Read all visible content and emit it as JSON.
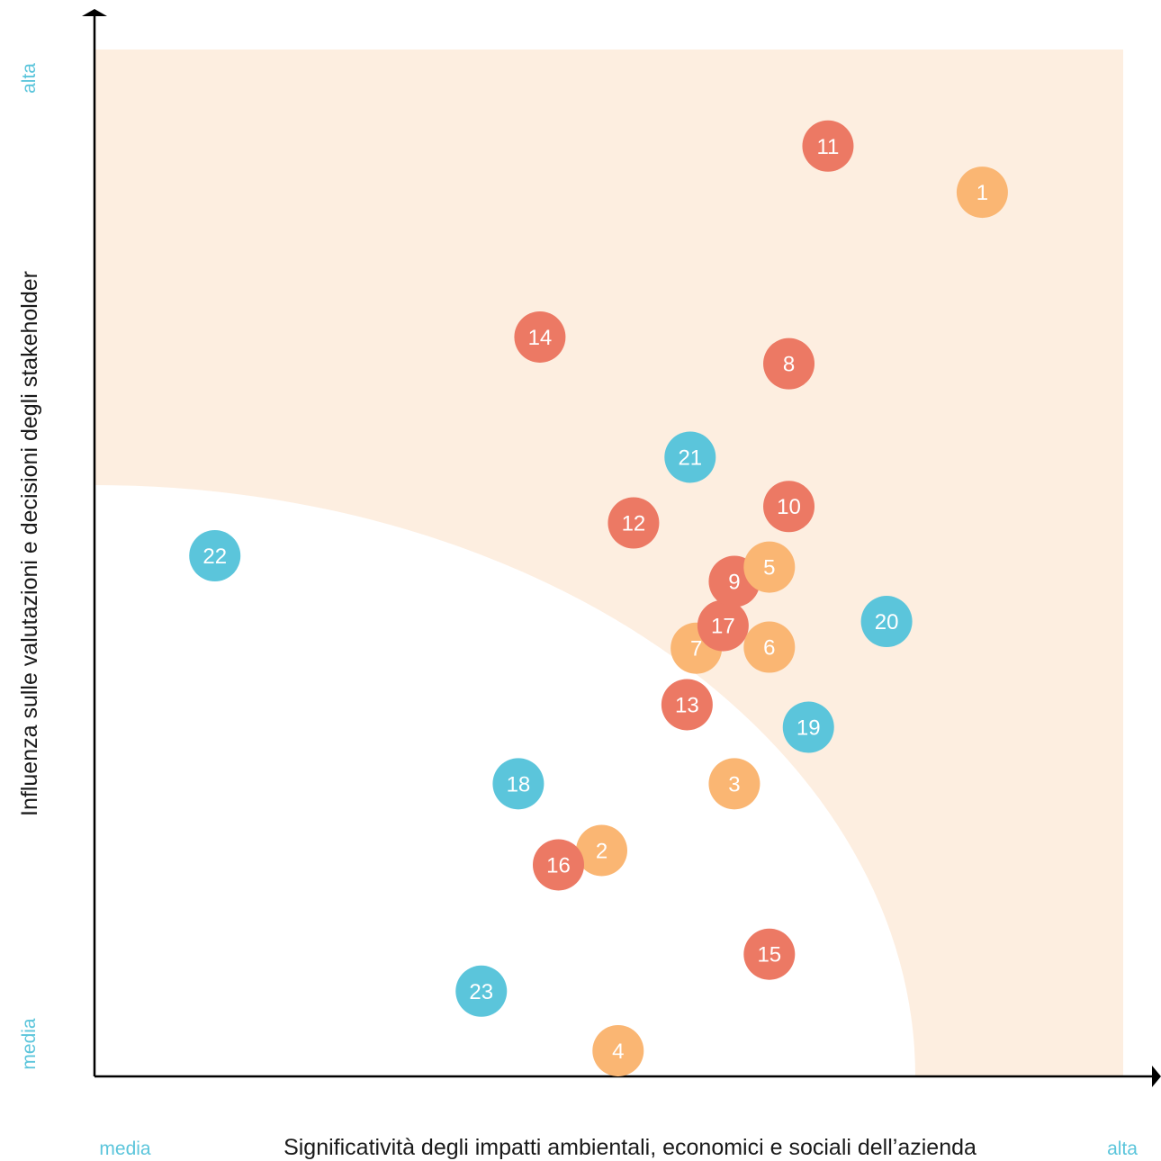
{
  "colors": {
    "background": "#ffffff",
    "zone_fill": "#fdeee0",
    "axis": "#000000",
    "scale_label": "#5bc5db",
    "dot_text": "#ffffff"
  },
  "chart_data": {
    "type": "scatter",
    "xlabel": "Significatività degli impatti ambientali, economici e sociali dell’azienda",
    "ylabel": "Influenza sulle valutazioni e decisioni degli stakeholder",
    "x_scale_labels": {
      "low": "media",
      "high": "alta"
    },
    "y_scale_labels": {
      "low": "media",
      "high": "alta"
    },
    "xlim": [
      0,
      100
    ],
    "ylim": [
      0,
      100
    ],
    "grid": false,
    "legend": "none",
    "category_colors": {
      "orange": "#fab673",
      "red": "#ec7964",
      "blue": "#5bc5db"
    },
    "points": [
      {
        "id": "22",
        "x": 11.7,
        "y": 50.7,
        "category": "blue"
      },
      {
        "id": "23",
        "x": 37.6,
        "y": 8.3,
        "category": "blue"
      },
      {
        "id": "18",
        "x": 41.2,
        "y": 28.5,
        "category": "blue"
      },
      {
        "id": "4",
        "x": 50.9,
        "y": 2.5,
        "category": "orange"
      },
      {
        "id": "2",
        "x": 49.3,
        "y": 22.0,
        "category": "orange"
      },
      {
        "id": "16",
        "x": 45.1,
        "y": 20.6,
        "category": "red"
      },
      {
        "id": "14",
        "x": 43.3,
        "y": 72.0,
        "category": "red"
      },
      {
        "id": "12",
        "x": 52.4,
        "y": 53.9,
        "category": "red"
      },
      {
        "id": "13",
        "x": 57.6,
        "y": 36.2,
        "category": "red"
      },
      {
        "id": "21",
        "x": 57.9,
        "y": 60.3,
        "category": "blue"
      },
      {
        "id": "7",
        "x": 58.5,
        "y": 41.7,
        "category": "orange"
      },
      {
        "id": "17",
        "x": 61.1,
        "y": 43.9,
        "category": "red"
      },
      {
        "id": "3",
        "x": 62.2,
        "y": 28.5,
        "category": "orange"
      },
      {
        "id": "9",
        "x": 62.2,
        "y": 48.2,
        "category": "red"
      },
      {
        "id": "5",
        "x": 65.6,
        "y": 49.6,
        "category": "orange"
      },
      {
        "id": "6",
        "x": 65.6,
        "y": 41.8,
        "category": "orange"
      },
      {
        "id": "15",
        "x": 65.6,
        "y": 11.9,
        "category": "red"
      },
      {
        "id": "10",
        "x": 67.5,
        "y": 55.5,
        "category": "red"
      },
      {
        "id": "8",
        "x": 67.5,
        "y": 69.4,
        "category": "red"
      },
      {
        "id": "19",
        "x": 69.4,
        "y": 34.0,
        "category": "blue"
      },
      {
        "id": "11",
        "x": 71.3,
        "y": 90.6,
        "category": "red"
      },
      {
        "id": "20",
        "x": 77.0,
        "y": 44.3,
        "category": "blue"
      },
      {
        "id": "1",
        "x": 86.3,
        "y": 86.1,
        "category": "orange"
      }
    ]
  }
}
